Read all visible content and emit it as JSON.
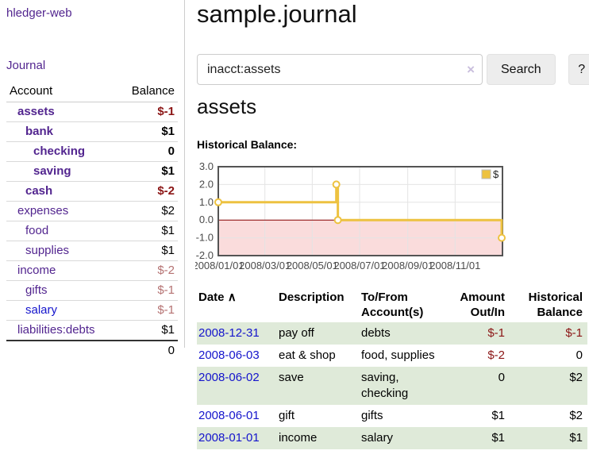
{
  "colors": {
    "accent_purple": "#52258f",
    "link_blue": "#1414cc",
    "negative": "#8b1515",
    "negative_muted": "#b57272",
    "row_highlight_green": "#dfead9",
    "button_bg": "#ededed"
  },
  "sidebar": {
    "brand": "hledger-web",
    "journal_label": "Journal",
    "accounts_table": {
      "headers": [
        "Account",
        "Balance"
      ],
      "rows": [
        {
          "account": "assets",
          "balance": "$-1",
          "depth": 1,
          "matched": true,
          "link_color": "purple",
          "balance_class": "neg"
        },
        {
          "account": "bank",
          "balance": "$1",
          "depth": 2,
          "matched": true,
          "link_color": "purple",
          "balance_class": "plain"
        },
        {
          "account": "checking",
          "balance": "0",
          "depth": 3,
          "matched": true,
          "link_color": "purple",
          "balance_class": "plain"
        },
        {
          "account": "saving",
          "balance": "$1",
          "depth": 3,
          "matched": true,
          "link_color": "purple",
          "balance_class": "plain"
        },
        {
          "account": "cash",
          "balance": "$-2",
          "depth": 2,
          "matched": true,
          "link_color": "purple",
          "balance_class": "neg"
        },
        {
          "account": "expenses",
          "balance": "$2",
          "depth": 1,
          "matched": false,
          "link_color": "purple",
          "balance_class": "plain"
        },
        {
          "account": "food",
          "balance": "$1",
          "depth": 2,
          "matched": false,
          "link_color": "purple",
          "balance_class": "plain"
        },
        {
          "account": "supplies",
          "balance": "$1",
          "depth": 2,
          "matched": false,
          "link_color": "purple",
          "balance_class": "plain"
        },
        {
          "account": "income",
          "balance": "$-2",
          "depth": 1,
          "matched": false,
          "link_color": "purple",
          "balance_class": "neg-muted"
        },
        {
          "account": "gifts",
          "balance": "$-1",
          "depth": 2,
          "matched": false,
          "link_color": "purple",
          "balance_class": "neg-muted"
        },
        {
          "account": "salary",
          "balance": "$-1",
          "depth": 2,
          "matched": false,
          "link_color": "blue",
          "balance_class": "neg-muted"
        },
        {
          "account": "liabilities:debts",
          "balance": "$1",
          "depth": 1,
          "matched": false,
          "link_color": "purple",
          "balance_class": "plain"
        }
      ],
      "total": "0"
    }
  },
  "main": {
    "title": "sample.journal",
    "search": {
      "value": "inacct:assets",
      "clear_icon": "×",
      "search_label": "Search",
      "help_label": "?"
    },
    "account_heading": "assets",
    "chart_label": "Historical Balance:",
    "register": {
      "headers": [
        "Date",
        "Description",
        "To/From Account(s)",
        "Amount Out/In",
        "Historical Balance"
      ],
      "sort_icon": "∧",
      "rows": [
        {
          "date": "2008-12-31",
          "description": "pay off",
          "accounts": [
            "debts"
          ],
          "amount": "$-1",
          "amount_class": "neg",
          "balance": "$-1",
          "balance_class": "neg",
          "highlight": true
        },
        {
          "date": "2008-06-03",
          "description": "eat & shop",
          "accounts": [
            "food",
            "supplies"
          ],
          "amount": "$-2",
          "amount_class": "neg",
          "balance": "0",
          "balance_class": "plain",
          "highlight": false
        },
        {
          "date": "2008-06-02",
          "description": "save",
          "accounts": [
            "saving",
            "checking"
          ],
          "amount": "0",
          "amount_class": "plain",
          "balance": "$2",
          "balance_class": "plain",
          "highlight": true
        },
        {
          "date": "2008-06-01",
          "description": "gift",
          "accounts": [
            "gifts"
          ],
          "amount": "$1",
          "amount_class": "plain",
          "balance": "$2",
          "balance_class": "plain",
          "highlight": false
        },
        {
          "date": "2008-01-01",
          "description": "income",
          "accounts": [
            "salary"
          ],
          "amount": "$1",
          "amount_class": "plain",
          "balance": "$1",
          "balance_class": "plain",
          "highlight": true
        }
      ]
    }
  },
  "chart_data": {
    "type": "line",
    "title": "Historical Balance",
    "step": true,
    "series": [
      {
        "name": "$",
        "color": "#edc240",
        "points": [
          {
            "x": "2008-01-01",
            "y": 1
          },
          {
            "x": "2008-06-01",
            "y": 2
          },
          {
            "x": "2008-06-03",
            "y": 0
          },
          {
            "x": "2008-12-31",
            "y": -1
          }
        ]
      }
    ],
    "xrange": [
      "2008-01-01",
      "2009-01-01"
    ],
    "ylim": [
      -2,
      3
    ],
    "yticks": [
      3.0,
      2.0,
      1.0,
      0.0,
      -1.0,
      -2.0
    ],
    "xticks": [
      {
        "x": "2008-01-01",
        "label": "2008/01/01"
      },
      {
        "x": "2008-03-01",
        "label": "2008/03/01"
      },
      {
        "x": "2008-05-01",
        "label": "2008/05/01"
      },
      {
        "x": "2008-07-01",
        "label": "2008/07/01"
      },
      {
        "x": "2008-09-01",
        "label": "2008/09/01"
      },
      {
        "x": "2008-11-01",
        "label": "2008/11/01"
      }
    ],
    "legend": {
      "label": "$",
      "position": "top-right"
    },
    "grid": true,
    "grid_color": "#e4e4e4",
    "zero_line_color": "#8b0000",
    "negative_region_color": "#fadcdc",
    "border_color": "#545454",
    "tick_label_color": "#4a4a4a",
    "marker_fill": "#ffffff"
  }
}
